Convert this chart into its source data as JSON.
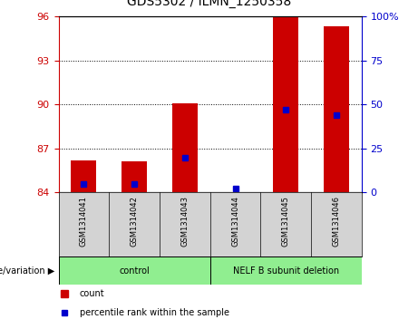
{
  "title": "GDS5302 / ILMN_1250358",
  "samples": [
    "GSM1314041",
    "GSM1314042",
    "GSM1314043",
    "GSM1314044",
    "GSM1314045",
    "GSM1314046"
  ],
  "red_values": [
    86.2,
    86.1,
    90.1,
    84.0,
    96.0,
    95.3
  ],
  "blue_values": [
    5.0,
    5.0,
    20.0,
    2.0,
    47.0,
    44.0
  ],
  "y_min": 84,
  "y_max": 96,
  "y_ticks": [
    84,
    87,
    90,
    93,
    96
  ],
  "y2_ticks": [
    0,
    25,
    50,
    75,
    100
  ],
  "y2_labels": [
    "0",
    "25",
    "50",
    "75",
    "100%"
  ],
  "bar_color": "#cc0000",
  "dot_color": "#0000cc",
  "bar_width": 0.5,
  "bg_plot": "#ffffff",
  "bg_sample": "#d3d3d3",
  "bg_group": "#90ee90",
  "ctrl_label": "control",
  "del_label": "NELF B subunit deletion",
  "genotype_label": "genotype/variation",
  "legend_count": "count",
  "legend_pct": "percentile rank within the sample",
  "title_fontsize": 10,
  "tick_fontsize": 8,
  "label_fontsize": 7
}
